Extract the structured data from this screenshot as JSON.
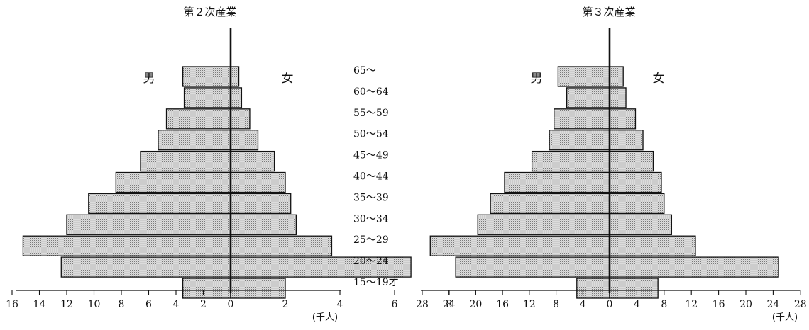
{
  "age_groups": [
    "65～",
    "60～64",
    "55～59",
    "50～54",
    "45～49",
    "40～44",
    "35～39",
    "30～34",
    "25～29",
    "20～24",
    "15～19才"
  ],
  "unit_label": "(千人)",
  "colors": {
    "bar_fill": "#dcdcdc",
    "bar_dot": "#7a7a7a",
    "ink": "#111111"
  },
  "chart_data": [
    {
      "type": "bar",
      "orientation": "horizontal-population-pyramid",
      "title": "第２次産業",
      "left_label": "男",
      "right_label": "女",
      "categories": [
        "65～",
        "60～64",
        "55～59",
        "50～54",
        "45～49",
        "40～44",
        "35～39",
        "30～34",
        "25～29",
        "20～24",
        "15～19才"
      ],
      "series": [
        {
          "name": "男",
          "values": [
            3.5,
            3.4,
            4.7,
            5.3,
            6.6,
            8.4,
            10.4,
            12.0,
            15.2,
            12.4,
            3.5
          ]
        },
        {
          "name": "女",
          "values": [
            0.3,
            0.4,
            0.7,
            1.0,
            1.6,
            2.0,
            2.2,
            2.4,
            3.7,
            6.6,
            2.0
          ]
        }
      ],
      "xlim_left": [
        0,
        16
      ],
      "xlim_right": [
        0,
        8
      ],
      "ticks_left": [
        16,
        14,
        12,
        10,
        8,
        6,
        4,
        2,
        0
      ],
      "ticks_right": [
        2,
        4,
        6,
        8
      ],
      "xlabel": "(千人)"
    },
    {
      "type": "bar",
      "orientation": "horizontal-population-pyramid",
      "title": "第３次産業",
      "left_label": "男",
      "right_label": "女",
      "categories": [
        "65～",
        "60～64",
        "55～59",
        "50～54",
        "45～49",
        "40～44",
        "35～39",
        "30～34",
        "25～29",
        "20～24",
        "15～19才"
      ],
      "series": [
        {
          "name": "男",
          "values": [
            7.7,
            6.4,
            8.3,
            9.0,
            11.6,
            15.7,
            17.8,
            19.7,
            26.8,
            23.0,
            4.9
          ]
        },
        {
          "name": "女",
          "values": [
            2.0,
            2.4,
            3.8,
            4.9,
            6.4,
            7.6,
            8.0,
            9.1,
            12.6,
            24.8,
            7.1
          ]
        }
      ],
      "xlim_left": [
        0,
        28
      ],
      "xlim_right": [
        0,
        28
      ],
      "ticks_left": [
        28,
        24,
        20,
        16,
        12,
        8,
        4,
        0
      ],
      "ticks_right": [
        4,
        8,
        12,
        16,
        20,
        24,
        28
      ],
      "xlabel": "(千人)"
    }
  ]
}
